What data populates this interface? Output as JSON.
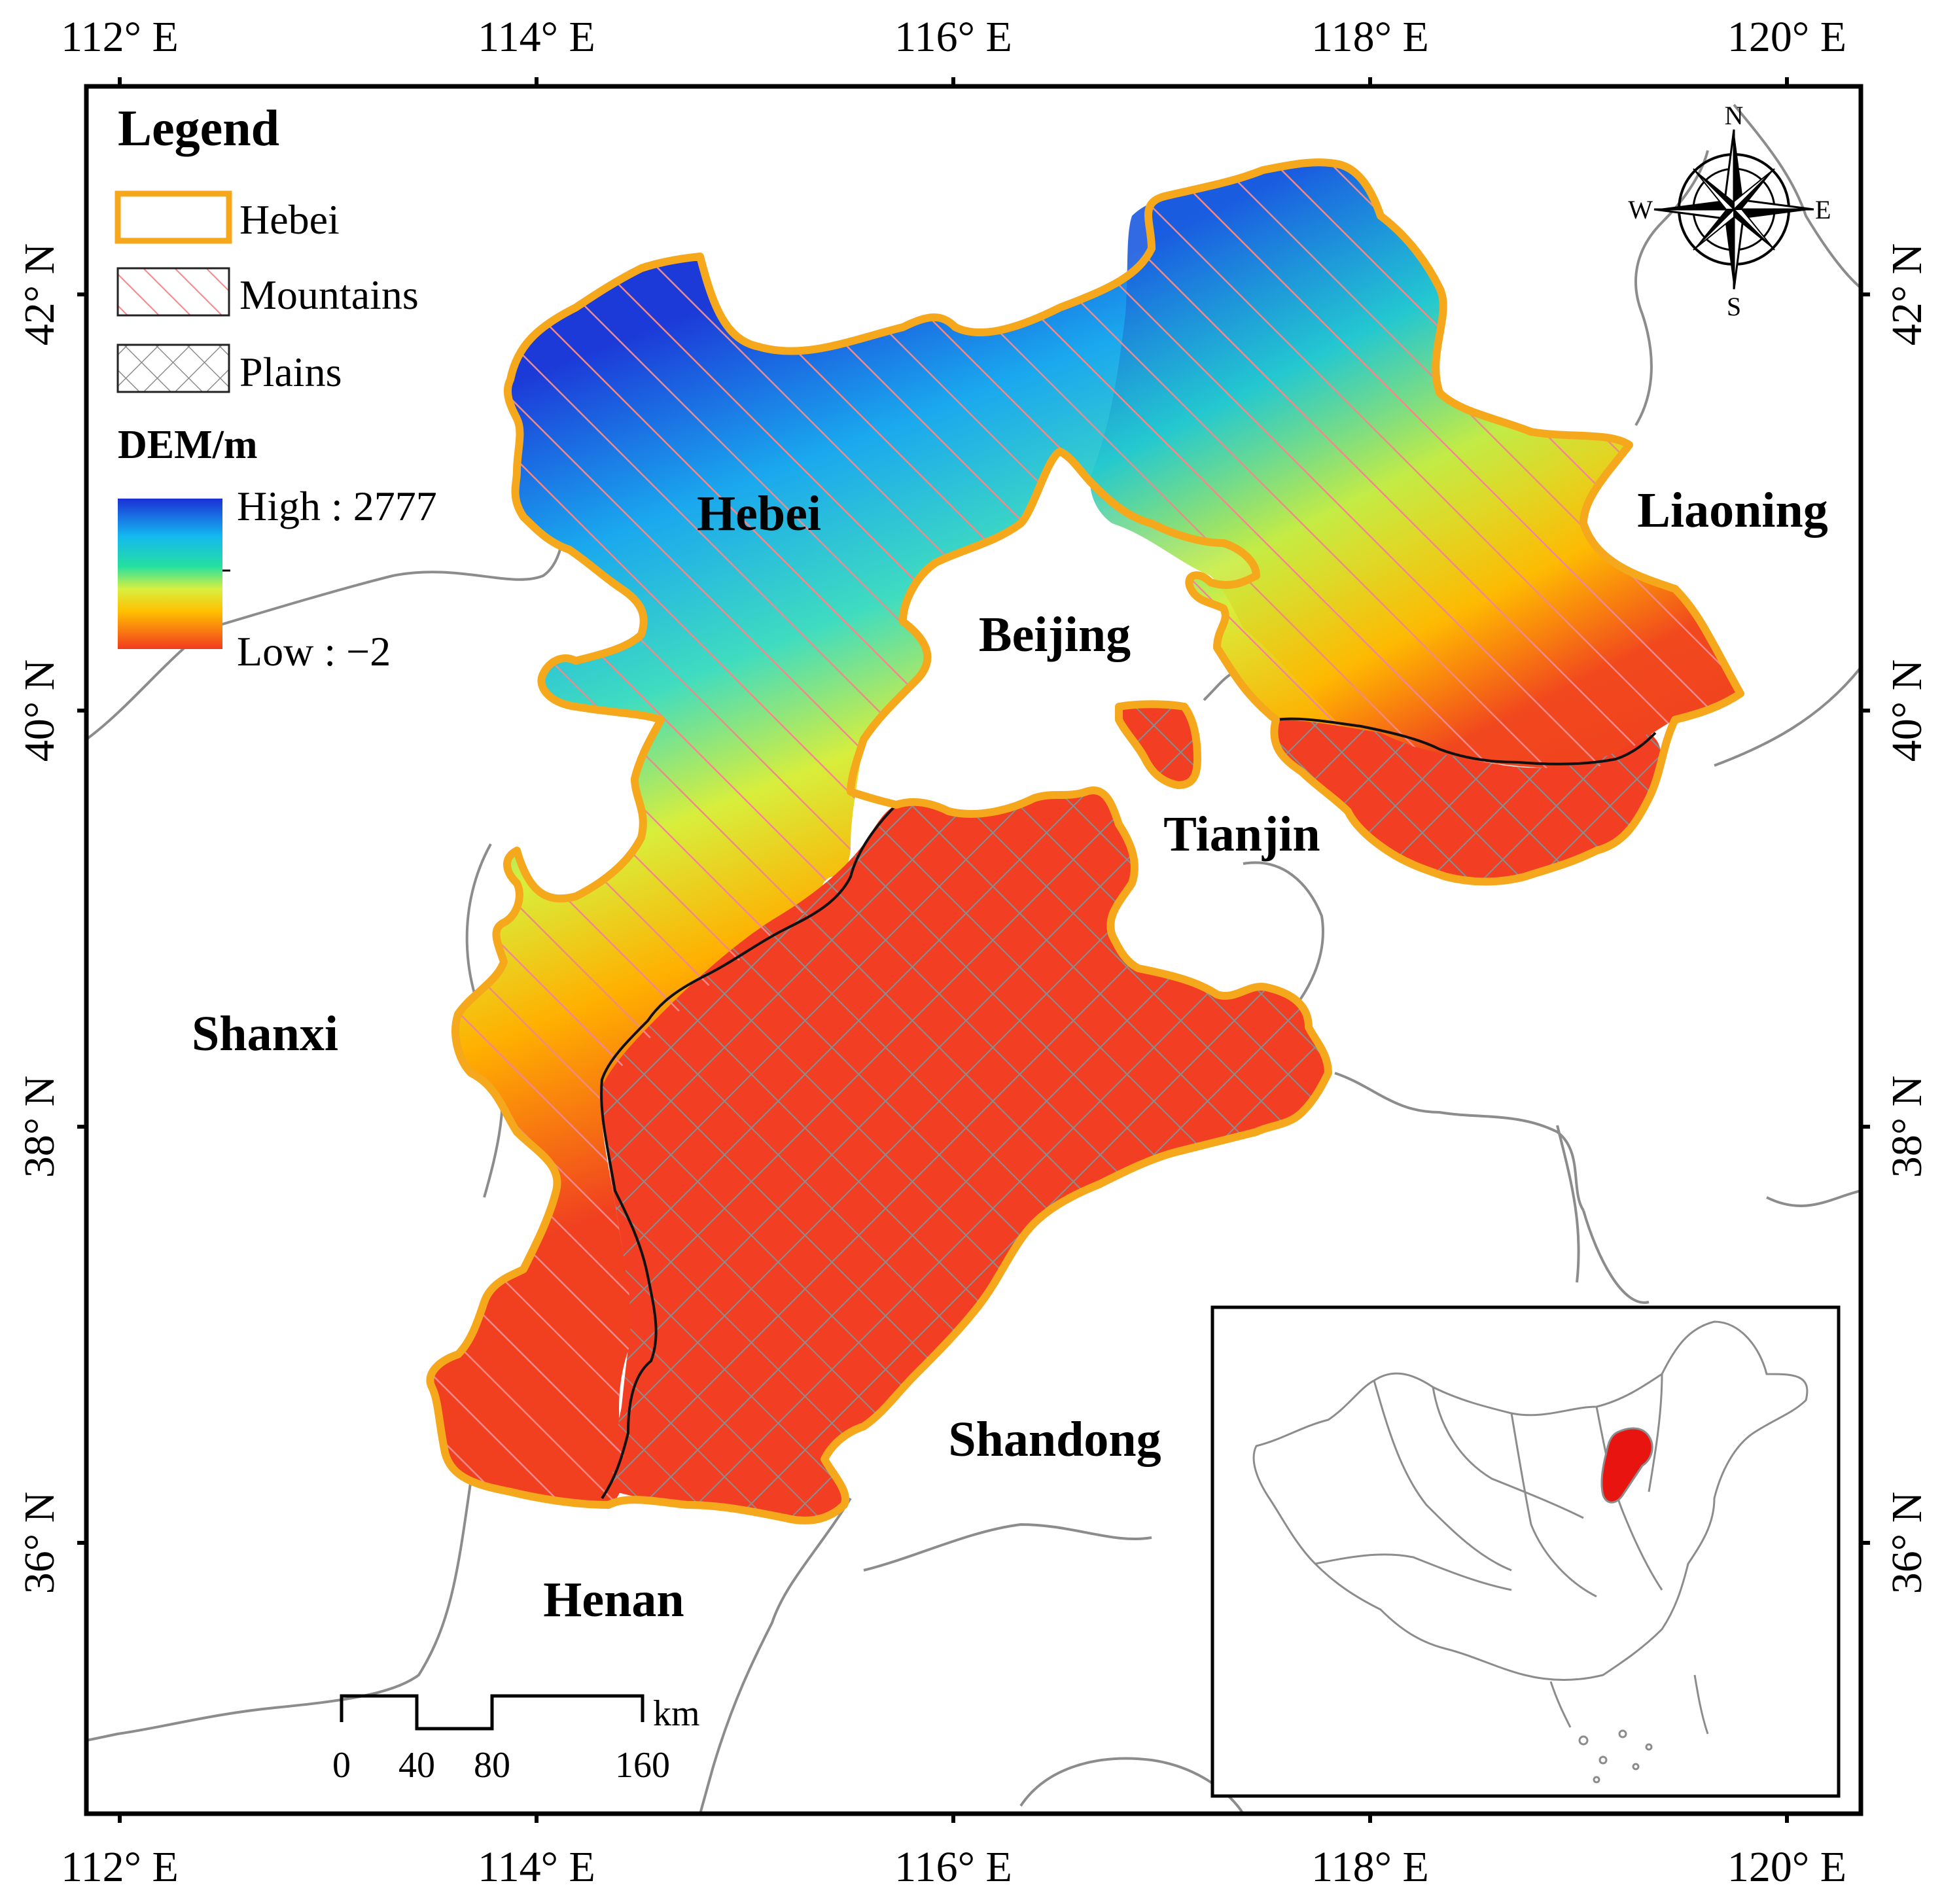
{
  "top_axis_labels": [
    "112° E",
    "114° E",
    "116° E",
    "118° E",
    "120° E"
  ],
  "bottom_axis_labels": [
    "112° E",
    "114° E",
    "116° E",
    "118° E",
    "120° E"
  ],
  "left_axis_labels": [
    "42° N",
    "40° N",
    "38° N",
    "36° N"
  ],
  "right_axis_labels": [
    "42° N",
    "40° N",
    "38° N",
    "36° N"
  ],
  "legend": {
    "title": "Legend",
    "items": [
      "Hebei",
      "Mountains",
      "Plains"
    ],
    "dem_title": "DEM/m",
    "dem_high": "High : 2777",
    "dem_low": "Low : −2",
    "dem_high_value": 2777,
    "dem_low_value": -2
  },
  "place_labels": {
    "hebei": "Hebei",
    "beijing": "Beijing",
    "tianjin": "Tianjin",
    "liaoning": "Liaoning",
    "shanxi": "Shanxi",
    "shandong": "Shandong",
    "henan": "Henan"
  },
  "compass": {
    "n": "N",
    "e": "E",
    "s": "S",
    "w": "W"
  },
  "scale_bar": {
    "unit": "km",
    "ticks": [
      "0",
      "40",
      "80",
      "160"
    ]
  },
  "colors": {
    "hebei_outline": "#f5a81c",
    "mountain_hatch": "#f08a8a",
    "plains_hatch": "#8c8c8c",
    "dem_high": "#1c2fd6",
    "dem_low": "#f23a1f",
    "inset_highlight": "#e8140f"
  }
}
